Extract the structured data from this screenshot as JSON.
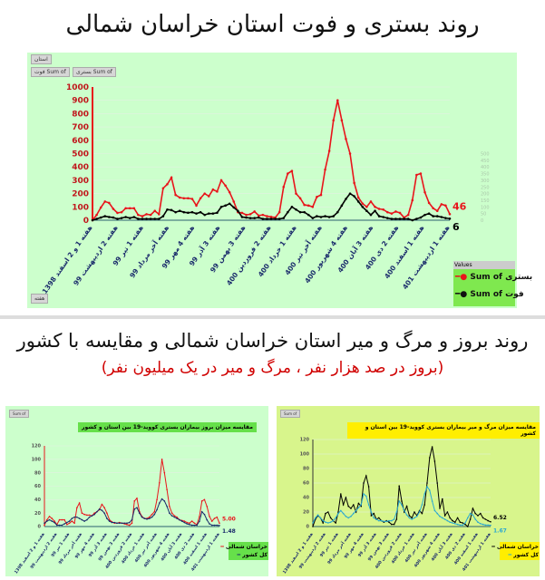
{
  "titles": {
    "main": "روند بستری و فوت استان خراسان شمالی",
    "second": "روند بروز و مرگ و میر استان خراسان شمالی و مقایسه با کشور",
    "subtitle": "(بروز در صد هزار نفر ، مرگ و میر در یک میلیون نفر)"
  },
  "filters": {
    "province": "استان",
    "week": "هفته",
    "sum_death": "Sum of فوت",
    "sum_hosp": "Sum of بستری",
    "small": "Sum of"
  },
  "chart_data": [
    {
      "type": "line",
      "title": "",
      "x_labels": [
        "هفته 1 و 2 اسفند 1398",
        "هفته 2 اردیبهشت 99",
        "هفته 1 تیر 99",
        "هفته آخر مرداد 99",
        "هفته 4 مهر 99",
        "هفته 3 آذر 99",
        "هفته 3 بهمن 99",
        "هفته 2 فروردین 400",
        "هفته 1 خرداد 400",
        "هفته آخر تیر 400",
        "هفته 4 شهریور 400",
        "هفته 3 آبان 400",
        "هفته 2 دی 400",
        "هفته 1 اسفند 400",
        "هفته 1 اردیبهشت 401"
      ],
      "ylim": [
        0,
        1000
      ],
      "yticks": [
        0,
        100,
        200,
        300,
        400,
        500,
        600,
        700,
        800,
        900,
        1000
      ],
      "y2lim": [
        0,
        500
      ],
      "y2ticks": [
        0,
        50,
        100,
        150,
        200,
        250,
        300,
        350,
        400,
        450,
        500
      ],
      "legend_title": "Values",
      "legend": "bottom-right",
      "series": [
        {
          "name": "Sum of بستری",
          "color": "#e8141b",
          "axis": "left",
          "end_label": "46",
          "values": [
            0,
            40,
            95,
            140,
            130,
            85,
            55,
            60,
            90,
            90,
            90,
            40,
            30,
            45,
            40,
            70,
            45,
            240,
            270,
            320,
            190,
            170,
            165,
            165,
            160,
            110,
            165,
            200,
            180,
            230,
            215,
            300,
            260,
            210,
            140,
            60,
            55,
            40,
            45,
            65,
            35,
            40,
            30,
            25,
            20,
            60,
            250,
            350,
            370,
            200,
            165,
            115,
            110,
            100,
            175,
            190,
            380,
            520,
            750,
            900,
            750,
            610,
            500,
            280,
            170,
            125,
            100,
            140,
            100,
            85,
            80,
            60,
            50,
            65,
            55,
            20,
            40,
            150,
            340,
            350,
            210,
            130,
            90,
            70,
            120,
            110,
            46
          ]
        },
        {
          "name": "Sum of فوت",
          "color": "#000000",
          "axis": "right",
          "end_label": "6",
          "values": [
            0,
            5,
            10,
            15,
            12,
            10,
            5,
            8,
            12,
            8,
            12,
            5,
            5,
            5,
            5,
            5,
            5,
            15,
            40,
            38,
            30,
            35,
            30,
            28,
            30,
            25,
            30,
            20,
            25,
            25,
            28,
            50,
            55,
            62,
            48,
            35,
            12,
            10,
            8,
            8,
            10,
            5,
            5,
            5,
            5,
            5,
            8,
            30,
            50,
            40,
            30,
            30,
            20,
            8,
            15,
            12,
            15,
            12,
            15,
            30,
            55,
            80,
            100,
            90,
            70,
            50,
            35,
            20,
            35,
            15,
            12,
            8,
            5,
            5,
            5,
            5,
            5,
            0,
            5,
            10,
            20,
            25,
            15,
            15,
            12,
            8,
            6
          ]
        }
      ]
    },
    {
      "type": "line",
      "title": "مقایسه میزان بروز بیماران بستری کووید-19 بین استان و کشور",
      "ylim": [
        0,
        120
      ],
      "yticks": [
        0,
        20,
        40,
        60,
        80,
        100,
        120
      ],
      "legend": "bottom-right",
      "x_labels": [
        "هفته 1 و 2 اسفند 1398",
        "هفته 2 اردیبهشت 99",
        "هفته 1 تیر 99",
        "هفته آخر مرداد 99",
        "هفته 4 مهر 99",
        "هفته 3 آذر 99",
        "هفته 3 بهمن 99",
        "هفته 2 فروردین 400",
        "هفته 1 خرداد 400",
        "هفته آخر تیر 400",
        "هفته 4 شهریور 400",
        "هفته 3 آبان 400",
        "هفته 2 دی 400",
        "هفته 1 اسفند 400",
        "هفته 1 اردیبهشت 401"
      ],
      "series": [
        {
          "name": "خراسان شمالی",
          "color": "#e8141b",
          "end_label": "5.00",
          "values": [
            2,
            10,
            15,
            12,
            8,
            3,
            10,
            10,
            10,
            3,
            5,
            8,
            5,
            28,
            35,
            20,
            18,
            17,
            17,
            16,
            20,
            22,
            25,
            33,
            28,
            20,
            10,
            7,
            5,
            5,
            6,
            5,
            4,
            3,
            2,
            5,
            38,
            42,
            22,
            15,
            12,
            12,
            14,
            18,
            22,
            40,
            65,
            100,
            80,
            55,
            30,
            20,
            16,
            14,
            10,
            9,
            8,
            6,
            5,
            8,
            5,
            3,
            15,
            38,
            40,
            30,
            15,
            8,
            12,
            14,
            5
          ]
        },
        {
          "name": "کل کشور",
          "color": "#1a2b6b",
          "end_label": "1.48",
          "values": [
            5,
            8,
            10,
            8,
            6,
            2,
            2,
            2,
            4,
            6,
            8,
            12,
            14,
            14,
            12,
            10,
            8,
            10,
            14,
            16,
            18,
            22,
            26,
            24,
            20,
            12,
            8,
            6,
            6,
            5,
            5,
            5,
            5,
            5,
            6,
            10,
            26,
            28,
            20,
            14,
            12,
            11,
            12,
            14,
            18,
            25,
            35,
            41,
            38,
            30,
            20,
            16,
            14,
            12,
            10,
            8,
            6,
            4,
            3,
            2,
            2,
            2,
            8,
            22,
            18,
            10,
            4,
            2,
            2,
            2,
            1.48
          ]
        }
      ]
    },
    {
      "type": "line",
      "title": "مقایسه میزان مرگ و میر بیماران بستری کووید-19 بین استان و کشور",
      "ylim": [
        0,
        120
      ],
      "yticks": [
        0,
        20,
        40,
        60,
        80,
        100,
        120
      ],
      "legend": "bottom-right",
      "x_labels": [
        "هفته 1 و 2 اسفند 1398",
        "هفته 2 اردیبهشت 99",
        "هفته 1 تیر 99",
        "هفته آخر مرداد 99",
        "هفته 4 مهر 99",
        "هفته 3 آذر 99",
        "هفته 3 بهمن 99",
        "هفته 2 فروردین 400",
        "هفته 1 خرداد 400",
        "هفته آخر تیر 400",
        "هفته 4 شهریور 400",
        "هفته 3 آبان 400",
        "هفته 2 دی 400",
        "هفته 1 اسفند 400",
        "هفته 1 اردیبهشت 401"
      ],
      "series": [
        {
          "name": "خراسان شمالی",
          "color": "#000000",
          "end_label": "6.52",
          "values": [
            0,
            10,
            15,
            12,
            5,
            18,
            20,
            12,
            8,
            5,
            20,
            45,
            30,
            40,
            28,
            25,
            30,
            20,
            32,
            28,
            60,
            70,
            55,
            15,
            18,
            10,
            12,
            8,
            6,
            8,
            6,
            3,
            3,
            10,
            56,
            35,
            20,
            28,
            15,
            12,
            20,
            15,
            22,
            18,
            30,
            60,
            95,
            110,
            90,
            60,
            25,
            38,
            15,
            20,
            12,
            8,
            6,
            12,
            6,
            5,
            3,
            0,
            10,
            25,
            18,
            15,
            18,
            12,
            10,
            8,
            6.52
          ]
        },
        {
          "name": "کل کشور",
          "color": "#2aa8d0",
          "end_label": "1.67",
          "values": [
            5,
            12,
            16,
            12,
            8,
            6,
            5,
            6,
            8,
            12,
            18,
            22,
            18,
            14,
            12,
            14,
            18,
            22,
            26,
            30,
            45,
            42,
            30,
            20,
            12,
            10,
            8,
            8,
            7,
            7,
            8,
            8,
            10,
            20,
            35,
            30,
            22,
            16,
            12,
            10,
            12,
            14,
            20,
            30,
            45,
            55,
            50,
            35,
            22,
            18,
            14,
            12,
            10,
            8,
            6,
            5,
            4,
            3,
            2,
            2,
            5,
            12,
            18,
            16,
            10,
            6,
            4,
            3,
            2,
            2,
            1.67
          ]
        }
      ]
    }
  ]
}
